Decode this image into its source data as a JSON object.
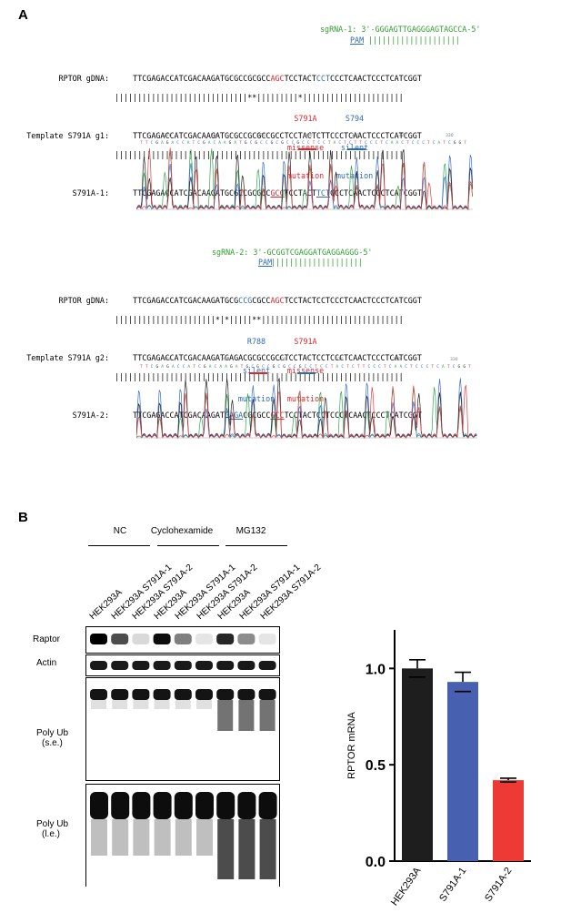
{
  "panel_a": {
    "letter": "A",
    "block1": {
      "sgrna": "sgRNA-1: 3'-GGGAGTTGAGGGAGTAGCCA-5'",
      "pam_label": "PAM",
      "pam_bars": "||||||||||||||||||||",
      "rows": [
        {
          "label": "RPTOR gDNA:",
          "pre": "TTCGAGACCATCGACAAGATGCGCCGCGCC",
          "mid1": "AGC",
          "mid2": "TCCTACT",
          "mid3": "CCT",
          "post": "CCCTCAACTCCCTCATCGGT"
        },
        {
          "label": "",
          "seq": "|||||||||||||||||||||||||||||**|||||||||*||||||||||||||||||||||"
        },
        {
          "label": "Template S791A g1:",
          "seq": "TTCGAGACCATCGACAAGATGCGCCGCGCCGCCTCCTACTCTTCCCTCAACTCCCTCATCGGT"
        },
        {
          "label": "",
          "seq": "|||||||||||||||||||||||||||||||||||||||||||||||||||||||||||||||"
        },
        {
          "label": "S791A-1:",
          "pre": "TTCGAGACCATCGACAAGATGCGCCGCGCC",
          "mid1": "GCC",
          "mid2": "TCCTACT",
          "mid3": "TCT",
          "post": "CCCTCAACTCCCTCATCGGT"
        }
      ],
      "red_ann": [
        "S791A",
        "missense",
        "mutation"
      ],
      "blue_ann": [
        "S794",
        "silent",
        "mutation"
      ],
      "trace_ticks": [
        "270",
        "280",
        "290",
        "300",
        "310",
        "320",
        "330"
      ]
    },
    "block2": {
      "sgrna": "sgRNA-2: 3'-GCGGTCGAGGATGAGGAGGG-5'",
      "pam_label": "PAM",
      "pam_bars": "||||||||||||||||||||",
      "rows": [
        {
          "label": "RPTOR gDNA:",
          "pre": "TTCGAGACCATCGACAAGATGCG",
          "mid1": "CCG",
          "mid2": "CGCC",
          "mid3": "AGC",
          "post": "TCCTACTCCTCCCTCAACTCCCTCATCGGT"
        },
        {
          "label": "",
          "seq": "||||||||||||||||||||||*|*|||||**|||||||||||||||||||||||||||||||"
        },
        {
          "label": "Template S791A g2:",
          "seq": "TTCGAGACCATCGACAAGATGAGACGCGCCGCCTCCTACTCCTCCCTCAACTCCCTCATCGGT"
        },
        {
          "label": "",
          "seq": "|||||||||||||||||||||||||||||||||||||||||||||||||||||||||||||||"
        },
        {
          "label": "S791A-2:",
          "pre": "TTCGAGACCATCGACAAGATG",
          "mid1": "AGA",
          "mid2": "CGCGCC",
          "mid3": "GCC",
          "post": "TCCTACTCCTCCCTCAACTCCCTCATCGGT"
        }
      ],
      "blue_ann": [
        "R788",
        "silent",
        "mutation"
      ],
      "red_ann": [
        "S791A",
        "missense",
        "mutation"
      ],
      "trace_ticks": [
        "280",
        "290",
        "300",
        "310",
        "320",
        "330"
      ]
    }
  },
  "panel_b": {
    "letter": "B",
    "groups": [
      "NC",
      "Cyclohexamide",
      "MG132"
    ],
    "lanes": [
      "HEK293A",
      "HEK293A S791A-1",
      "HEK293A S791A-2",
      "HEK293A",
      "HEK293A S791A-1",
      "HEK293A S791A-2",
      "HEK293A",
      "HEK293A S791A-1",
      "HEK293A S791A-2"
    ],
    "blot_labels": {
      "raptor": "Raptor",
      "actin": "Actin",
      "polyub_se_1": "Poly Ub",
      "polyub_se_2": "(s.e.)",
      "polyub_le_1": "Poly Ub",
      "polyub_le_2": "(l.e.)"
    },
    "raptor_intensity": [
      1.0,
      0.7,
      0.15,
      0.95,
      0.5,
      0.1,
      0.85,
      0.45,
      0.1
    ],
    "actin_intensity": [
      1,
      1,
      1,
      1,
      1,
      1,
      1,
      1,
      1
    ]
  },
  "chart_data": {
    "type": "bar",
    "categories": [
      "HEK293A",
      "S791A-1",
      "S791A-2"
    ],
    "values": [
      1.0,
      0.93,
      0.42
    ],
    "errors": [
      0.045,
      0.05,
      0.01
    ],
    "colors": [
      "#1e1e1e",
      "#4760b0",
      "#ee3a34"
    ],
    "ylabel": "RPTOR mRNA",
    "ylim": [
      0,
      1.2
    ],
    "yticks": [
      "0.0",
      "0.5",
      "1.0"
    ],
    "ytick_values": [
      0,
      0.5,
      1.0
    ]
  }
}
